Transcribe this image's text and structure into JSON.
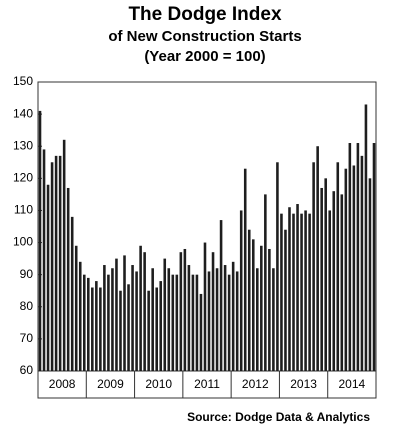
{
  "chart_data": {
    "type": "bar",
    "title": "The Dodge Index",
    "subtitle": [
      "of New Construction Starts",
      "(Year 2000 = 100)"
    ],
    "source": "Source:  Dodge Data & Analytics",
    "categories": [
      null,
      null,
      null,
      null,
      null,
      null,
      "2008",
      null,
      null,
      null,
      null,
      null,
      null,
      null,
      null,
      null,
      null,
      null,
      "2009",
      null,
      null,
      null,
      null,
      null,
      null,
      null,
      null,
      null,
      null,
      null,
      "2010",
      null,
      null,
      null,
      null,
      null,
      null,
      null,
      null,
      null,
      null,
      null,
      "2011",
      null,
      null,
      null,
      null,
      null,
      null,
      null,
      null,
      null,
      null,
      null,
      "2012",
      null,
      null,
      null,
      null,
      null,
      null,
      null,
      null,
      null,
      null,
      null,
      "2013",
      null,
      null,
      null,
      null,
      null,
      null,
      null,
      null,
      null,
      null,
      null,
      "2014",
      null,
      null,
      null,
      null,
      null
    ],
    "values": [
      141,
      129,
      118,
      125,
      127,
      127,
      132,
      117,
      108,
      99,
      94,
      90,
      89,
      86,
      88,
      86,
      93,
      90,
      92,
      95,
      85,
      96,
      87,
      93,
      91,
      99,
      97,
      85,
      92,
      86,
      88,
      95,
      92,
      90,
      90,
      97,
      98,
      93,
      90,
      90,
      84,
      100,
      91,
      97,
      92,
      107,
      93,
      90,
      94,
      91,
      110,
      123,
      104,
      101,
      92,
      99,
      115,
      98,
      92,
      125,
      109,
      104,
      111,
      109,
      112,
      109,
      110,
      109,
      125,
      130,
      117,
      120,
      110,
      116,
      125,
      115,
      123,
      131,
      124,
      131,
      127,
      143,
      120,
      131
    ],
    "color": "#1e1e1e",
    "ylim": [
      60,
      150
    ],
    "yticks": [
      60,
      70,
      80,
      90,
      100,
      110,
      120,
      130,
      140,
      150
    ],
    "grid": false
  }
}
